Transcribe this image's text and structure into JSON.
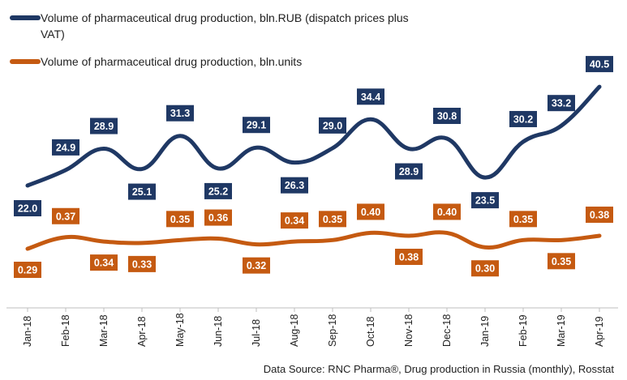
{
  "chart_data": {
    "type": "line",
    "categories": [
      "Jan-18",
      "Feb-18",
      "Mar-18",
      "Apr-18",
      "May-18",
      "Jun-18",
      "Jul-18",
      "Aug-18",
      "Sep-18",
      "Oct-18",
      "Nov-18",
      "Dec-18",
      "Jan-19",
      "Feb-19",
      "Mar-19",
      "Apr-19"
    ],
    "series": [
      {
        "name": "Volume of pharmaceutical drug production, bln.RUB (dispatch prices plus VAT)",
        "color": "#1f3864",
        "values": [
          22.0,
          24.9,
          28.9,
          25.1,
          31.3,
          25.2,
          29.1,
          26.3,
          29.0,
          34.4,
          28.9,
          30.8,
          23.5,
          30.2,
          33.2,
          40.5
        ],
        "labels": [
          "22.0",
          "24.9",
          "28.9",
          "25.1",
          "31.3",
          "25.2",
          "29.1",
          "26.3",
          "29.0",
          "34.4",
          "28.9",
          "30.8",
          "23.5",
          "30.2",
          "33.2",
          "40.5"
        ]
      },
      {
        "name": "Volume of pharmaceutical drug production, bln.units",
        "color": "#c55a11",
        "values": [
          0.29,
          0.37,
          0.34,
          0.33,
          0.35,
          0.36,
          0.32,
          0.34,
          0.35,
          0.4,
          0.38,
          0.4,
          0.3,
          0.35,
          0.35,
          0.38
        ],
        "labels": [
          "0.29",
          "0.37",
          "0.34",
          "0.33",
          "0.35",
          "0.36",
          "0.32",
          "0.34",
          "0.35",
          "0.40",
          "0.38",
          "0.40",
          "0.30",
          "0.35",
          "0.35",
          "0.38"
        ]
      }
    ],
    "smooth": true,
    "legend": "top-left",
    "grid": false
  },
  "source": "Data Source: RNC Pharma®, Drug production in Russia (monthly), Rosstat"
}
